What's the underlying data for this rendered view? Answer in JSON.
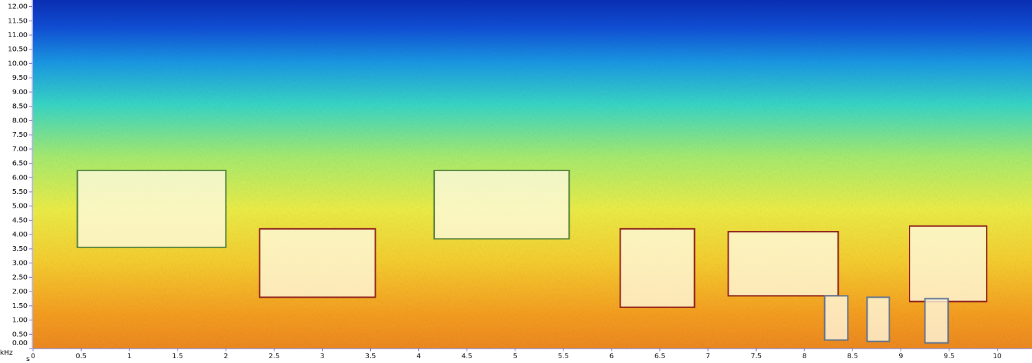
{
  "chart_data": {
    "type": "spectrogram",
    "x_label": "s",
    "y_label": "kHz",
    "xlim": [
      0,
      10.36
    ],
    "ylim": [
      0,
      12.23
    ],
    "xticks": [
      0,
      0.5,
      1,
      1.5,
      2,
      2.5,
      3,
      3.5,
      4,
      4.5,
      5,
      5.5,
      6,
      6.5,
      7,
      7.5,
      8,
      8.5,
      9,
      9.5,
      10
    ],
    "yticks": [
      {
        "value": 0,
        "label": "0.00"
      },
      {
        "value": 0.5,
        "label": "0.50"
      },
      {
        "value": 1,
        "label": "1.00"
      },
      {
        "value": 1.5,
        "label": "1.50"
      },
      {
        "value": 2,
        "label": "2.00"
      },
      {
        "value": 2.5,
        "label": "2.50"
      },
      {
        "value": 3,
        "label": "3.00"
      },
      {
        "value": 3.5,
        "label": "3.50"
      },
      {
        "value": 4,
        "label": "4.00"
      },
      {
        "value": 4.5,
        "label": "4.50"
      },
      {
        "value": 5,
        "label": "5.00"
      },
      {
        "value": 5.5,
        "label": "5.50"
      },
      {
        "value": 6,
        "label": "6.00"
      },
      {
        "value": 6.5,
        "label": "6.50"
      },
      {
        "value": 7,
        "label": "7.00"
      },
      {
        "value": 7.5,
        "label": "7.50"
      },
      {
        "value": 8,
        "label": "8.00"
      },
      {
        "value": 8.5,
        "label": "8.50"
      },
      {
        "value": 9,
        "label": "9.00"
      },
      {
        "value": 9.5,
        "label": "9.50"
      },
      {
        "value": 10,
        "label": "10.00"
      },
      {
        "value": 10.5,
        "label": "10.50"
      },
      {
        "value": 11,
        "label": "11.00"
      },
      {
        "value": 11.5,
        "label": "11.50"
      },
      {
        "value": 12,
        "label": "12.00"
      }
    ],
    "boxes": [
      {
        "x": [
          0.46,
          2.0
        ],
        "y": [
          3.55,
          6.25
        ],
        "color": "#4f7f3a"
      },
      {
        "x": [
          2.35,
          3.55
        ],
        "y": [
          1.8,
          4.2
        ],
        "color": "#8b1a1a"
      },
      {
        "x": [
          4.16,
          5.56
        ],
        "y": [
          3.85,
          6.25
        ],
        "color": "#4f7f3a"
      },
      {
        "x": [
          6.09,
          6.86
        ],
        "y": [
          1.45,
          4.2
        ],
        "color": "#8b1a1a"
      },
      {
        "x": [
          7.21,
          8.35
        ],
        "y": [
          1.85,
          4.1
        ],
        "color": "#8b1a1a"
      },
      {
        "x": [
          9.09,
          9.89
        ],
        "y": [
          1.65,
          4.3
        ],
        "color": "#8b1a1a"
      },
      {
        "x": [
          8.21,
          8.45
        ],
        "y": [
          0.3,
          1.85
        ],
        "color": "#5a7090"
      },
      {
        "x": [
          8.65,
          8.88
        ],
        "y": [
          0.25,
          1.8
        ],
        "color": "#5a7090"
      },
      {
        "x": [
          9.25,
          9.49
        ],
        "y": [
          0.2,
          1.75
        ],
        "color": "#5a7090"
      }
    ]
  }
}
